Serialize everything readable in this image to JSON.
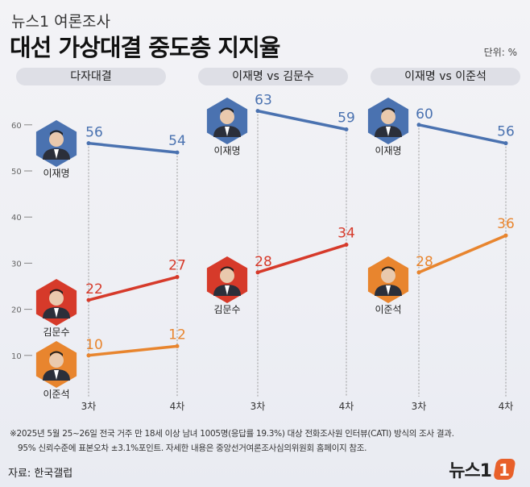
{
  "header": {
    "kicker": "뉴스1 여론조사",
    "title": "대선 가상대결 중도층 지지율",
    "unit": "단위: %"
  },
  "tabs": [
    "다자대결",
    "이재명 vs 김문수",
    "이재명 vs 이준석"
  ],
  "colors": {
    "이재명": "#4a72b0",
    "김문수": "#d63a2a",
    "이준석": "#e8852e"
  },
  "chart_data": [
    {
      "type": "line",
      "title": "다자대결",
      "categories": [
        "3차",
        "4차"
      ],
      "ylim": [
        0,
        65
      ],
      "yticks": [
        10,
        20,
        30,
        40,
        50,
        60
      ],
      "series": [
        {
          "name": "이재명",
          "values": [
            56,
            54
          ]
        },
        {
          "name": "김문수",
          "values": [
            22,
            27
          ]
        },
        {
          "name": "이준석",
          "values": [
            10,
            12
          ]
        }
      ]
    },
    {
      "type": "line",
      "title": "이재명 vs 김문수",
      "categories": [
        "3차",
        "4차"
      ],
      "ylim": [
        0,
        65
      ],
      "series": [
        {
          "name": "이재명",
          "values": [
            63,
            59
          ]
        },
        {
          "name": "김문수",
          "values": [
            28,
            34
          ]
        }
      ]
    },
    {
      "type": "line",
      "title": "이재명 vs 이준석",
      "categories": [
        "3차",
        "4차"
      ],
      "ylim": [
        0,
        65
      ],
      "series": [
        {
          "name": "이재명",
          "values": [
            60,
            56
          ]
        },
        {
          "name": "이준석",
          "values": [
            28,
            36
          ]
        }
      ]
    }
  ],
  "footer": {
    "note1": "※2025년 5월 25~26일 전국 거주 만 18세 이상 남녀 1005명(응답률 19.3%) 대상 전화조사원 인터뷰(CATI) 방식의 조사 결과.",
    "note2": "95% 신뢰수준에 표본오차 ±3.1%포인트. 자세한 내용은 중앙선거여론조사심의위원회 홈페이지 참조.",
    "source": "자료: 한국갤럽",
    "logo": "뉴스1"
  }
}
